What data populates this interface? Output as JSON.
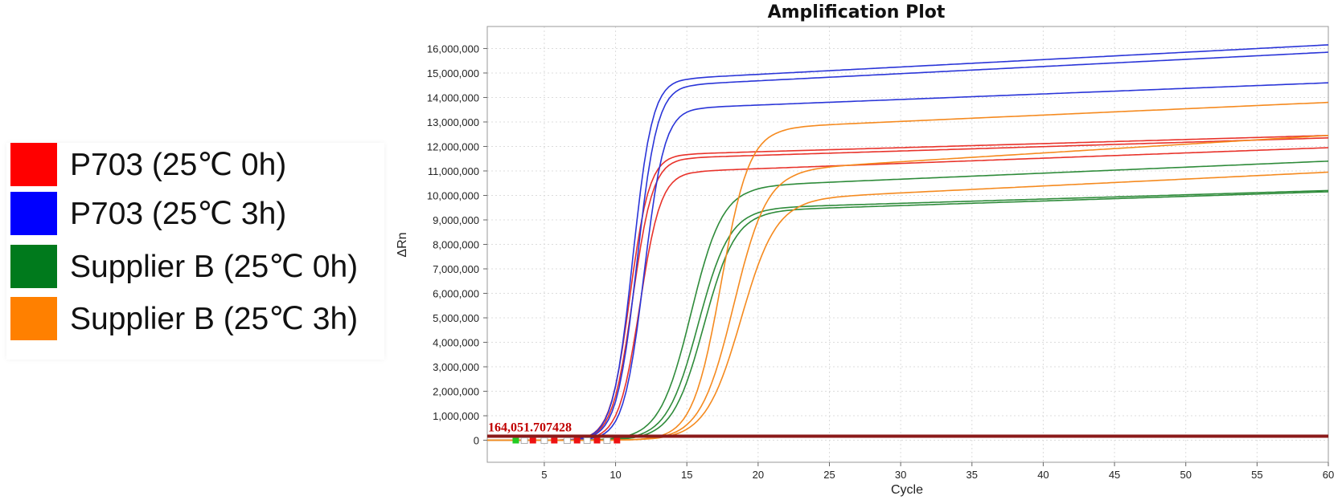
{
  "legend": {
    "items": [
      {
        "label": "P703 (25℃ 0h)",
        "color": "#ff0000"
      },
      {
        "label": "P703 (25℃ 3h)",
        "color": "#0000ff"
      },
      {
        "label": "Supplier B (25℃ 0h)",
        "color": "#007a1c"
      },
      {
        "label": "Supplier B (25℃ 3h)",
        "color": "#ff8000"
      }
    ]
  },
  "chart_data": {
    "type": "line",
    "title": "Amplification Plot",
    "xlabel": "Cycle",
    "ylabel": "ΔRn",
    "xlim": [
      1,
      60
    ],
    "ylim": [
      -900000,
      16900000
    ],
    "xticks": [
      5,
      10,
      15,
      20,
      25,
      30,
      35,
      40,
      45,
      50,
      55,
      60
    ],
    "yticks": [
      0,
      1000000,
      2000000,
      3000000,
      4000000,
      5000000,
      6000000,
      7000000,
      8000000,
      9000000,
      10000000,
      11000000,
      12000000,
      13000000,
      14000000,
      15000000,
      16000000
    ],
    "ytick_labels": [
      "0",
      "1,000,000",
      "2,000,000",
      "3,000,000",
      "4,000,000",
      "5,000,000",
      "6,000,000",
      "7,000,000",
      "8,000,000",
      "9,000,000",
      "10,000,000",
      "11,000,000",
      "12,000,000",
      "13,000,000",
      "14,000,000",
      "15,000,000",
      "16,000,000"
    ],
    "grid": true,
    "threshold": {
      "value": 164051.707428,
      "label": "164,051.707428",
      "color": "#8b1a1a"
    },
    "series": [
      {
        "group": "P703 (25℃ 0h)",
        "color": "#e8322a",
        "midpoint": 11.0,
        "slope": 1.45,
        "plateau": 11700000,
        "end": 12450000
      },
      {
        "group": "P703 (25℃ 0h)",
        "color": "#e8322a",
        "midpoint": 11.2,
        "slope": 1.4,
        "plateau": 11550000,
        "end": 12350000
      },
      {
        "group": "P703 (25℃ 0h)",
        "color": "#e8322a",
        "midpoint": 11.7,
        "slope": 1.35,
        "plateau": 11000000,
        "end": 11950000
      },
      {
        "group": "P703 (25℃ 3h)",
        "color": "#2a35d8",
        "midpoint": 11.2,
        "slope": 1.45,
        "plateau": 14800000,
        "end": 16150000
      },
      {
        "group": "P703 (25℃ 3h)",
        "color": "#2a35d8",
        "midpoint": 11.5,
        "slope": 1.4,
        "plateau": 14550000,
        "end": 15850000
      },
      {
        "group": "P703 (25℃ 3h)",
        "color": "#2a35d8",
        "midpoint": 12.0,
        "slope": 1.4,
        "plateau": 13600000,
        "end": 14600000
      },
      {
        "group": "Supplier B (25℃ 0h)",
        "color": "#2e8b3a",
        "midpoint": 15.3,
        "slope": 0.9,
        "plateau": 10400000,
        "end": 11400000
      },
      {
        "group": "Supplier B (25℃ 0h)",
        "color": "#2e8b3a",
        "midpoint": 15.8,
        "slope": 0.9,
        "plateau": 9500000,
        "end": 10200000
      },
      {
        "group": "Supplier B (25℃ 0h)",
        "color": "#2e8b3a",
        "midpoint": 16.2,
        "slope": 0.9,
        "plateau": 9400000,
        "end": 10150000
      },
      {
        "group": "Supplier B (25℃ 3h)",
        "color": "#f58a1f",
        "midpoint": 17.4,
        "slope": 1.0,
        "plateau": 12800000,
        "end": 13800000
      },
      {
        "group": "Supplier B (25℃ 3h)",
        "color": "#f58a1f",
        "midpoint": 18.3,
        "slope": 0.85,
        "plateau": 11100000,
        "end": 12450000
      },
      {
        "group": "Supplier B (25℃ 3h)",
        "color": "#f58a1f",
        "midpoint": 18.8,
        "slope": 0.8,
        "plateau": 9900000,
        "end": 10950000
      }
    ]
  }
}
